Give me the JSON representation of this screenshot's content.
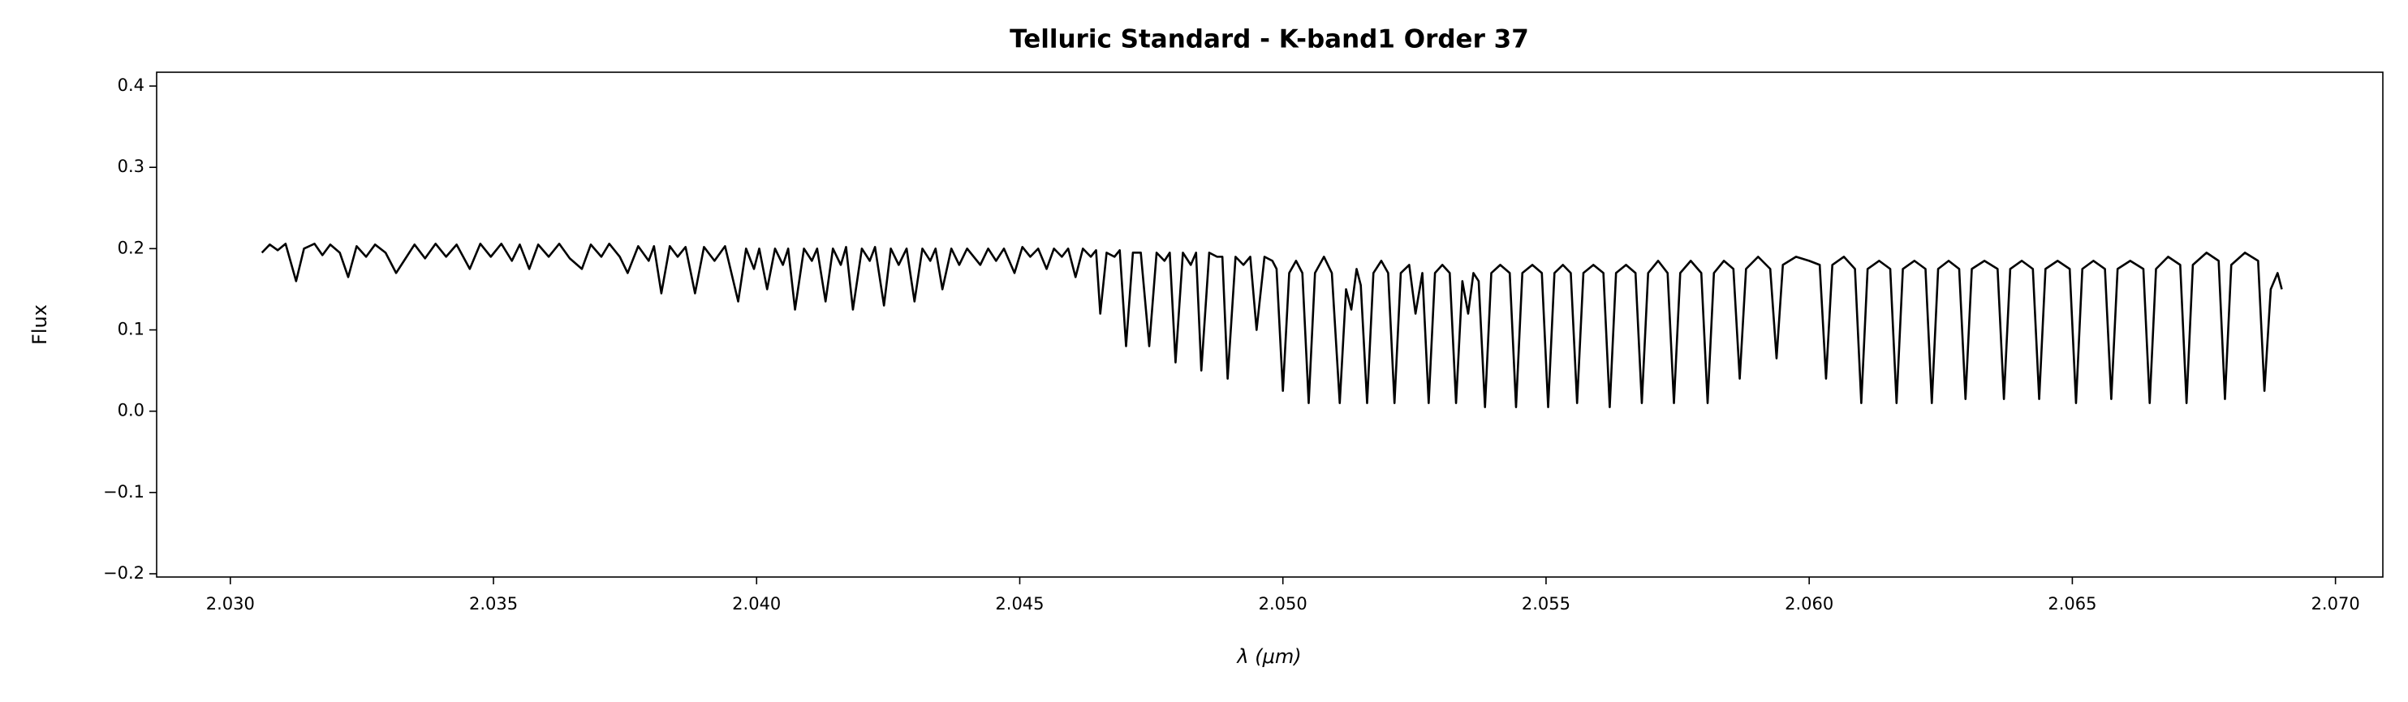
{
  "chart_data": {
    "type": "line",
    "title": "Telluric Standard - K-band1 Order 37",
    "x_label": "λ (μm)",
    "y_label": "Flux",
    "color": "#000000",
    "grid": false,
    "xlim": [
      2.0286,
      2.0709
    ],
    "ylim": [
      -0.204,
      0.417
    ],
    "xticks": [
      {
        "value": 2.03,
        "label": "2.030"
      },
      {
        "value": 2.035,
        "label": "2.035"
      },
      {
        "value": 2.04,
        "label": "2.040"
      },
      {
        "value": 2.045,
        "label": "2.045"
      },
      {
        "value": 2.05,
        "label": "2.050"
      },
      {
        "value": 2.055,
        "label": "2.055"
      },
      {
        "value": 2.06,
        "label": "2.060"
      },
      {
        "value": 2.065,
        "label": "2.065"
      },
      {
        "value": 2.07,
        "label": "2.070"
      }
    ],
    "yticks": [
      {
        "value": -0.2,
        "label": "−0.2"
      },
      {
        "value": -0.1,
        "label": "−0.1"
      },
      {
        "value": 0.0,
        "label": "0.0"
      },
      0.1,
      0.2,
      0.3,
      0.4
    ],
    "x": [
      2.0306,
      2.03075,
      2.0309,
      2.03105,
      2.03125,
      2.0314,
      2.0316,
      2.03175,
      2.0319,
      2.03208,
      2.03224,
      2.0324,
      2.03258,
      2.03275,
      2.03295,
      2.03315,
      2.0333,
      2.0335,
      2.0337,
      2.0339,
      2.0341,
      2.0343,
      2.03455,
      2.03475,
      2.03495,
      2.03515,
      2.03535,
      2.0355,
      2.03568,
      2.03585,
      2.03605,
      2.03625,
      2.03645,
      2.03668,
      2.03685,
      2.03705,
      2.0372,
      2.0374,
      2.03755,
      2.03775,
      2.03795,
      2.03805,
      2.03819,
      2.03835,
      2.0385,
      2.03865,
      2.03883,
      2.039,
      2.0392,
      2.0394,
      2.03965,
      2.0398,
      2.03995,
      2.04005,
      2.0402,
      2.04035,
      2.0405,
      2.0406,
      2.04073,
      2.0409,
      2.04105,
      2.04115,
      2.04131,
      2.04145,
      2.0416,
      2.0417,
      2.04183,
      2.042,
      2.04215,
      2.04225,
      2.04242,
      2.04255,
      2.0427,
      2.04285,
      2.043,
      2.04315,
      2.0433,
      2.0434,
      2.04353,
      2.0437,
      2.04385,
      2.044,
      2.04425,
      2.0444,
      2.04455,
      2.0447,
      2.0449,
      2.04505,
      2.0452,
      2.04535,
      2.04551,
      2.04565,
      2.0458,
      2.04592,
      2.04606,
      2.0462,
      2.04635,
      2.04645,
      2.04653,
      2.04665,
      2.0468,
      2.0469,
      2.04702,
      2.04715,
      2.0473,
      2.04746,
      2.0476,
      2.04775,
      2.04785,
      2.04796,
      2.0481,
      2.04825,
      2.04835,
      2.04845,
      2.0486,
      2.04875,
      2.04885,
      2.04895,
      2.0491,
      2.04925,
      2.04938,
      2.0495,
      2.04965,
      2.0498,
      2.04988,
      2.05,
      2.05012,
      2.05025,
      2.05037,
      2.05049,
      2.05061,
      2.05078,
      2.05093,
      2.05108,
      2.0512,
      2.0513,
      2.0514,
      2.05148,
      2.0516,
      2.05172,
      2.05187,
      2.052,
      2.05212,
      2.05224,
      2.0524,
      2.05252,
      2.05265,
      2.05277,
      2.05289,
      2.05303,
      2.05317,
      2.05329,
      2.05341,
      2.05352,
      2.05362,
      2.05372,
      2.05384,
      2.05396,
      2.05413,
      2.05431,
      2.05443,
      2.05455,
      2.05474,
      2.05492,
      2.05504,
      2.05516,
      2.05532,
      2.05547,
      2.05559,
      2.05571,
      2.0559,
      2.05609,
      2.05621,
      2.05633,
      2.05652,
      2.0567,
      2.05682,
      2.05694,
      2.05713,
      2.05731,
      2.05743,
      2.05755,
      2.05775,
      2.05795,
      2.05807,
      2.05819,
      2.05838,
      2.05856,
      2.05868,
      2.0588,
      2.05903,
      2.05926,
      2.05938,
      2.0595,
      2.05975,
      2.06,
      2.0602,
      2.06032,
      2.06044,
      2.06066,
      2.06087,
      2.06099,
      2.06111,
      2.06133,
      2.06154,
      2.06166,
      2.06178,
      2.062,
      2.06221,
      2.06233,
      2.06245,
      2.06265,
      2.06285,
      2.06297,
      2.06309,
      2.06333,
      2.06358,
      2.0637,
      2.06382,
      2.06404,
      2.06425,
      2.06437,
      2.06449,
      2.06472,
      2.06495,
      2.06507,
      2.06519,
      2.0654,
      2.06562,
      2.06574,
      2.06586,
      2.0661,
      2.06635,
      2.06647,
      2.06659,
      2.06682,
      2.06705,
      2.06717,
      2.06729,
      2.06755,
      2.06778,
      2.0679,
      2.06802,
      2.06828,
      2.06853,
      2.06865,
      2.06877,
      2.0689,
      2.06898
    ],
    "values": [
      0.195,
      0.205,
      0.198,
      0.206,
      0.16,
      0.2,
      0.206,
      0.192,
      0.205,
      0.195,
      0.165,
      0.203,
      0.19,
      0.205,
      0.195,
      0.17,
      0.185,
      0.205,
      0.188,
      0.206,
      0.19,
      0.205,
      0.175,
      0.206,
      0.19,
      0.206,
      0.185,
      0.205,
      0.175,
      0.205,
      0.19,
      0.206,
      0.188,
      0.175,
      0.205,
      0.19,
      0.206,
      0.19,
      0.17,
      0.203,
      0.185,
      0.203,
      0.145,
      0.203,
      0.19,
      0.202,
      0.145,
      0.202,
      0.185,
      0.203,
      0.135,
      0.2,
      0.175,
      0.2,
      0.15,
      0.2,
      0.18,
      0.2,
      0.125,
      0.2,
      0.185,
      0.2,
      0.135,
      0.2,
      0.18,
      0.202,
      0.125,
      0.2,
      0.185,
      0.202,
      0.13,
      0.2,
      0.18,
      0.2,
      0.135,
      0.2,
      0.185,
      0.2,
      0.15,
      0.2,
      0.18,
      0.2,
      0.18,
      0.2,
      0.185,
      0.2,
      0.17,
      0.202,
      0.19,
      0.2,
      0.175,
      0.2,
      0.19,
      0.2,
      0.165,
      0.2,
      0.19,
      0.198,
      0.12,
      0.195,
      0.19,
      0.198,
      0.08,
      0.195,
      0.195,
      0.08,
      0.195,
      0.185,
      0.195,
      0.06,
      0.195,
      0.18,
      0.195,
      0.05,
      0.195,
      0.19,
      0.19,
      0.04,
      0.19,
      0.18,
      0.19,
      0.1,
      0.19,
      0.185,
      0.175,
      0.025,
      0.17,
      0.185,
      0.17,
      0.01,
      0.17,
      0.19,
      0.17,
      0.01,
      0.15,
      0.125,
      0.175,
      0.155,
      0.01,
      0.17,
      0.185,
      0.17,
      0.01,
      0.17,
      0.18,
      0.12,
      0.17,
      0.01,
      0.17,
      0.18,
      0.17,
      0.01,
      0.16,
      0.12,
      0.17,
      0.16,
      0.005,
      0.17,
      0.18,
      0.17,
      0.005,
      0.17,
      0.18,
      0.17,
      0.005,
      0.17,
      0.18,
      0.17,
      0.01,
      0.17,
      0.18,
      0.17,
      0.005,
      0.17,
      0.18,
      0.17,
      0.01,
      0.17,
      0.185,
      0.17,
      0.01,
      0.17,
      0.185,
      0.17,
      0.01,
      0.17,
      0.185,
      0.175,
      0.04,
      0.175,
      0.19,
      0.175,
      0.065,
      0.18,
      0.19,
      0.185,
      0.18,
      0.04,
      0.18,
      0.19,
      0.175,
      0.01,
      0.175,
      0.185,
      0.175,
      0.01,
      0.175,
      0.185,
      0.175,
      0.01,
      0.175,
      0.185,
      0.175,
      0.015,
      0.175,
      0.185,
      0.175,
      0.015,
      0.175,
      0.185,
      0.175,
      0.015,
      0.175,
      0.185,
      0.175,
      0.01,
      0.175,
      0.185,
      0.175,
      0.015,
      0.175,
      0.185,
      0.175,
      0.01,
      0.175,
      0.19,
      0.18,
      0.01,
      0.18,
      0.195,
      0.185,
      0.015,
      0.18,
      0.195,
      0.185,
      0.025,
      0.15,
      0.17,
      0.15
    ]
  }
}
